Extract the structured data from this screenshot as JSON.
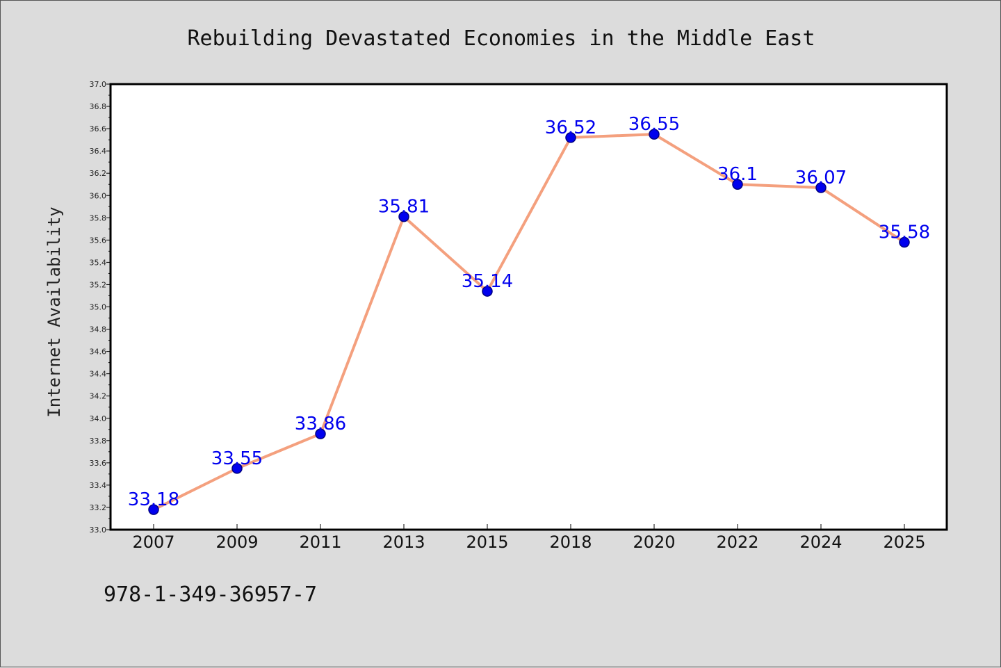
{
  "chart_data": {
    "type": "line",
    "title": "Rebuilding Devastated Economies in the Middle East",
    "xlabel": "",
    "ylabel": "Internet Availability",
    "categories": [
      "2007",
      "2009",
      "2011",
      "2013",
      "2015",
      "2018",
      "2020",
      "2022",
      "2024",
      "2025"
    ],
    "series": [
      {
        "values": [
          33.18,
          33.55,
          33.86,
          35.81,
          35.14,
          36.52,
          36.55,
          36.1,
          36.07,
          35.58
        ],
        "data_labels": [
          "33.18",
          "33.55",
          "33.86",
          "35.81",
          "35.14",
          "36.52",
          "36.55",
          "36.1",
          "36.07",
          "35.58"
        ]
      }
    ],
    "ylim": [
      33.0,
      37.0
    ],
    "yticks": [
      "33.0",
      "33.2",
      "33.4",
      "33.6",
      "33.8",
      "34.0",
      "34.2",
      "34.4",
      "34.6",
      "34.8",
      "35.0",
      "35.2",
      "35.4",
      "35.6",
      "35.8",
      "36.0",
      "36.2",
      "36.4",
      "36.6",
      "36.8",
      "37.0"
    ],
    "grid": false,
    "legend": "none",
    "colors": {
      "line": "#f4a07e",
      "marker": "#0000ee",
      "marker_edge": "#000080",
      "data_label": "#0000ee",
      "plot_background": "#ffffff",
      "figure_background": "#dcdcdc"
    }
  },
  "footer": {
    "code": "978-1-349-36957-7"
  }
}
